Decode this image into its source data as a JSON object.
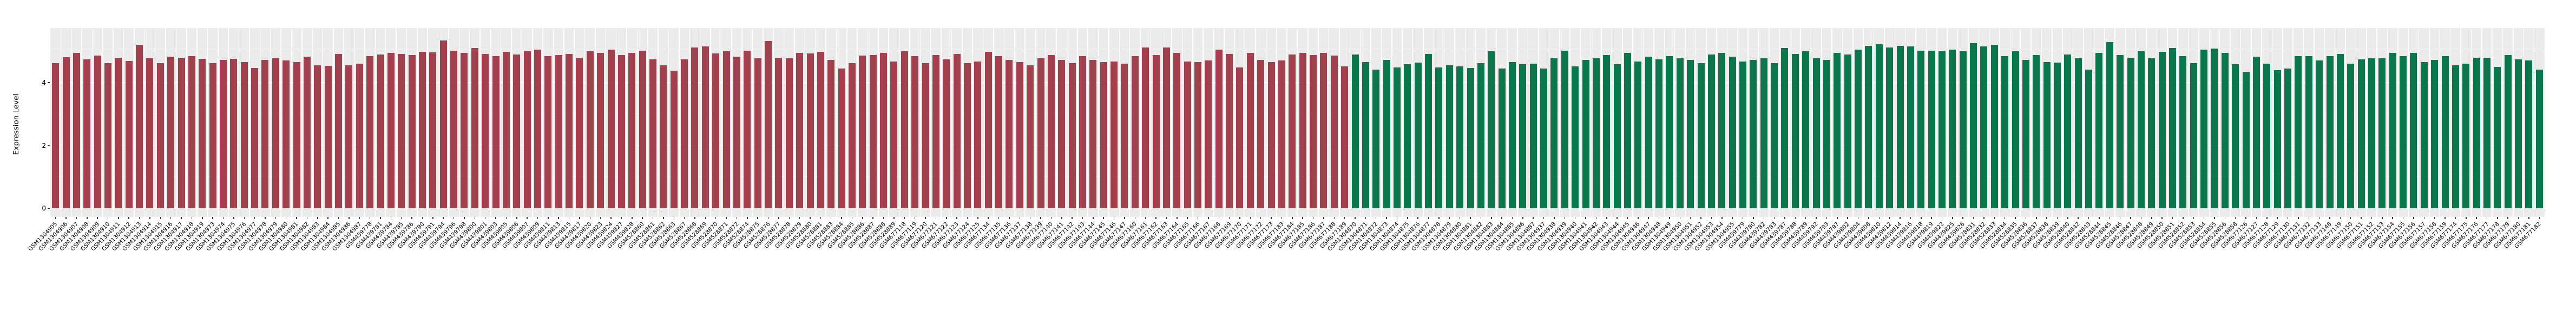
{
  "chart_data": {
    "type": "bar",
    "title": "",
    "ylabel": "Expression Level",
    "yticks": [
      0,
      2,
      4
    ],
    "minor_yticks": [
      1,
      3,
      5
    ],
    "ylim": [
      0,
      5.74
    ],
    "grid": true,
    "legend": "none",
    "panel_bg": "#EBEBEB",
    "grid_major_color": "#FFFFFF",
    "grid_minor_color": "rgba(255,255,255,0.55)",
    "series": [
      {
        "color": "#A2404E",
        "categories": [
          "GSM1304905",
          "GSM1304906",
          "GSM1304907",
          "GSM1304908",
          "GSM1304909",
          "GSM1304910",
          "GSM1304911",
          "GSM1304912",
          "GSM1304913",
          "GSM1304914",
          "GSM1304915",
          "GSM1304916",
          "GSM1304917",
          "GSM1304918",
          "GSM1304919",
          "GSM1304973",
          "GSM1304974",
          "GSM1304975",
          "GSM1304976",
          "GSM1304977",
          "GSM1304978",
          "GSM1304979",
          "GSM1304980",
          "GSM1304981",
          "GSM1304982",
          "GSM1304983",
          "GSM1304984",
          "GSM1304985",
          "GSM1304986",
          "GSM1304987",
          "GSM439778",
          "GSM439781",
          "GSM439784",
          "GSM439785",
          "GSM439786",
          "GSM439790",
          "GSM439791",
          "GSM439794",
          "GSM439796",
          "GSM439798",
          "GSM439800",
          "GSM439801",
          "GSM439803",
          "GSM439805",
          "GSM439806",
          "GSM439807",
          "GSM439809",
          "GSM439811",
          "GSM439813",
          "GSM439815",
          "GSM439817",
          "GSM439820",
          "GSM439823",
          "GSM439824",
          "GSM439827",
          "GSM439828",
          "GSM528860",
          "GSM528861",
          "GSM528862",
          "GSM528863",
          "GSM528867",
          "GSM528868",
          "GSM528869",
          "GSM528870",
          "GSM528871",
          "GSM528872",
          "GSM528874",
          "GSM528875",
          "GSM528876",
          "GSM528877",
          "GSM528878",
          "GSM528879",
          "GSM528880",
          "GSM528881",
          "GSM528883",
          "GSM528884",
          "GSM528885",
          "GSM528886",
          "GSM528887",
          "GSM528888",
          "GSM528889",
          "GSM677118",
          "GSM677119",
          "GSM677120",
          "GSM677121",
          "GSM677122",
          "GSM677123",
          "GSM677124",
          "GSM677125",
          "GSM677134",
          "GSM677135",
          "GSM677136",
          "GSM677137",
          "GSM677138",
          "GSM677139",
          "GSM677140",
          "GSM677141",
          "GSM677142",
          "GSM677143",
          "GSM677144",
          "GSM677145",
          "GSM677146",
          "GSM677147",
          "GSM677160",
          "GSM677161",
          "GSM677162",
          "GSM677163",
          "GSM677164",
          "GSM677165",
          "GSM677166",
          "GSM677167",
          "GSM677168",
          "GSM677169",
          "GSM677170",
          "GSM677171",
          "GSM677172",
          "GSM677173",
          "GSM677183",
          "GSM677184",
          "GSM677185",
          "GSM677186",
          "GSM677187",
          "GSM677188",
          "GSM677189"
        ],
        "values": [
          4.62,
          4.81,
          4.95,
          4.74,
          4.86,
          4.63,
          4.8,
          4.69,
          5.2,
          4.77,
          4.62,
          4.83,
          4.79,
          4.84,
          4.76,
          4.62,
          4.72,
          4.76,
          4.66,
          4.47,
          4.73,
          4.78,
          4.7,
          4.66,
          4.82,
          4.56,
          4.54,
          4.92,
          4.55,
          4.6,
          4.85,
          4.9,
          4.95,
          4.92,
          4.88,
          4.99,
          4.96,
          5.35,
          5.02,
          4.95,
          5.1,
          4.92,
          4.85,
          4.98,
          4.9,
          5.0,
          5.05,
          4.85,
          4.88,
          4.92,
          4.8,
          5.0,
          4.95,
          5.05,
          4.88,
          4.95,
          5.02,
          4.75,
          4.55,
          4.38,
          4.75,
          5.12,
          5.15,
          4.93,
          5.0,
          4.82,
          5.02,
          4.78,
          5.32,
          4.8,
          4.77,
          4.95,
          4.93,
          4.98,
          4.73,
          4.45,
          4.62,
          4.87,
          4.88,
          4.95,
          4.68,
          5.0,
          4.85,
          4.62,
          4.88,
          4.75,
          4.92,
          4.62,
          4.68,
          4.98,
          4.85,
          4.72,
          4.66,
          4.55,
          4.78,
          4.88,
          4.72,
          4.62,
          4.85,
          4.72,
          4.65,
          4.68,
          4.6,
          4.85,
          5.12,
          4.88,
          5.12,
          4.95,
          4.68,
          4.65,
          4.7,
          5.05,
          4.92,
          4.48,
          4.95,
          4.72,
          4.65,
          4.7,
          4.9,
          4.95,
          4.88,
          4.95,
          4.86,
          4.52
        ]
      },
      {
        "color": "#0B754C",
        "categories": [
          "GSM1304870",
          "GSM1304871",
          "GSM1304872",
          "GSM1304873",
          "GSM1304874",
          "GSM1304875",
          "GSM1304876",
          "GSM1304877",
          "GSM1304878",
          "GSM1304879",
          "GSM1304880",
          "GSM1304881",
          "GSM1304882",
          "GSM1304883",
          "GSM1304884",
          "GSM1304885",
          "GSM1304886",
          "GSM1304887",
          "GSM1304937",
          "GSM1304938",
          "GSM1304939",
          "GSM1304940",
          "GSM1304941",
          "GSM1304942",
          "GSM1304943",
          "GSM1304944",
          "GSM1304945",
          "GSM1304946",
          "GSM1304947",
          "GSM1304948",
          "GSM1304949",
          "GSM1304950",
          "GSM1304951",
          "GSM1304952",
          "GSM1304953",
          "GSM1304954",
          "GSM1304955",
          "GSM439779",
          "GSM439780",
          "GSM439782",
          "GSM439783",
          "GSM439787",
          "GSM439788",
          "GSM439789",
          "GSM439792",
          "GSM439793",
          "GSM439797",
          "GSM439802",
          "GSM439804",
          "GSM439808",
          "GSM439810",
          "GSM439812",
          "GSM439814",
          "GSM439816",
          "GSM439818",
          "GSM439819",
          "GSM439822",
          "GSM439825",
          "GSM439826",
          "GSM528831",
          "GSM528832",
          "GSM528833",
          "GSM528834",
          "GSM528835",
          "GSM528836",
          "GSM528837",
          "GSM528838",
          "GSM528839",
          "GSM528840",
          "GSM528842",
          "GSM528843",
          "GSM528844",
          "GSM528845",
          "GSM528846",
          "GSM528847",
          "GSM528848",
          "GSM528849",
          "GSM528850",
          "GSM528851",
          "GSM528852",
          "GSM528853",
          "GSM528854",
          "GSM528855",
          "GSM528856",
          "GSM528858",
          "GSM677126",
          "GSM677127",
          "GSM677128",
          "GSM677129",
          "GSM677130",
          "GSM677131",
          "GSM677132",
          "GSM677133",
          "GSM677148",
          "GSM677149",
          "GSM677150",
          "GSM677151",
          "GSM677152",
          "GSM677153",
          "GSM677154",
          "GSM677155",
          "GSM677156",
          "GSM677157",
          "GSM677158",
          "GSM677159",
          "GSM677174",
          "GSM677175",
          "GSM677176",
          "GSM677177",
          "GSM677178",
          "GSM677179",
          "GSM677180",
          "GSM677181",
          "GSM677182"
        ],
        "values": [
          4.9,
          4.66,
          4.42,
          4.72,
          4.48,
          4.58,
          4.64,
          4.92,
          4.48,
          4.55,
          4.52,
          4.46,
          4.62,
          5.0,
          4.45,
          4.65,
          4.58,
          4.6,
          4.45,
          4.78,
          5.02,
          4.52,
          4.72,
          4.78,
          4.88,
          4.58,
          4.95,
          4.68,
          4.82,
          4.75,
          4.85,
          4.78,
          4.72,
          4.62,
          4.9,
          4.95,
          4.82,
          4.68,
          4.72,
          4.78,
          4.62,
          5.1,
          4.92,
          5.0,
          4.78,
          4.72,
          4.95,
          4.9,
          5.05,
          5.18,
          5.22,
          5.12,
          5.18,
          5.15,
          5.02,
          5.02,
          5.0,
          5.05,
          5.0,
          5.25,
          5.15,
          5.2,
          4.85,
          5.0,
          4.72,
          4.88,
          4.65,
          4.64,
          4.9,
          4.78,
          4.42,
          4.95,
          5.3,
          4.88,
          4.8,
          5.0,
          4.78,
          4.98,
          5.1,
          4.85,
          4.62,
          5.05,
          5.08,
          4.95,
          4.58,
          4.35,
          4.82,
          4.6,
          4.4,
          4.45,
          4.85,
          4.85,
          4.7,
          4.85,
          4.92,
          4.6,
          4.75,
          4.78,
          4.78,
          4.95,
          4.85,
          4.95,
          4.65,
          4.72,
          4.85,
          4.55,
          4.6,
          4.79,
          4.8,
          4.5,
          4.88,
          4.74,
          4.7,
          4.41
        ]
      }
    ]
  }
}
